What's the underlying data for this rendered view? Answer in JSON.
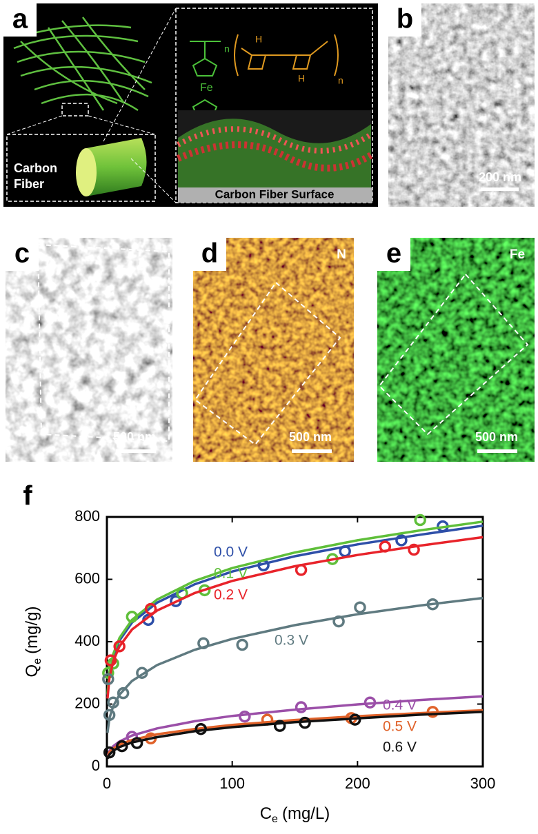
{
  "panels": {
    "a": {
      "letter": "a",
      "fiber_label": [
        "Carbon",
        "Fiber"
      ],
      "surface_label": "Carbon Fiber Surface",
      "chem_labels": [
        "n",
        "Fe",
        "H",
        "H",
        "n"
      ]
    },
    "b": {
      "letter": "b",
      "scale": "200 nm"
    },
    "c": {
      "letter": "c",
      "scale": "500 nm"
    },
    "d": {
      "letter": "d",
      "channel": "N",
      "scale": "500 nm"
    },
    "e": {
      "letter": "e",
      "channel": "Fe",
      "scale": "500 nm"
    },
    "f": {
      "letter": "f"
    }
  },
  "chart_data": {
    "type": "scatter",
    "x_label": {
      "main": "C",
      "sub": "e",
      "unit": "(mg/L)"
    },
    "y_label": {
      "main": "Q",
      "sub": "e",
      "unit": "(mg/g)"
    },
    "xlim": [
      0,
      300
    ],
    "ylim": [
      0,
      800
    ],
    "xticks": [
      0,
      100,
      200,
      300
    ],
    "yticks": [
      0,
      200,
      400,
      600,
      800
    ],
    "fit_x": [
      0.5,
      2,
      5,
      10,
      20,
      40,
      70,
      100,
      150,
      200,
      250,
      300
    ],
    "series": [
      {
        "name": "0.0 V",
        "color": "#2e4fa8",
        "x": [
          5,
          33,
          55,
          125,
          190,
          235,
          268
        ],
        "values": [
          330,
          470,
          530,
          645,
          690,
          725,
          770
        ],
        "fit_values": [
          229,
          297,
          354,
          404,
          461,
          525,
          584,
          625,
          674,
          712,
          743,
          772
        ]
      },
      {
        "name": "0.1 V",
        "color": "#5fbf3a",
        "x": [
          1,
          5,
          20,
          60,
          78,
          180,
          250
        ],
        "values": [
          300,
          330,
          480,
          555,
          565,
          665,
          790
        ],
        "fit_values": [
          233,
          302,
          360,
          412,
          470,
          535,
          595,
          636,
          686,
          725,
          757,
          785
        ]
      },
      {
        "name": "0.2 V",
        "color": "#e8232a",
        "x": [
          3,
          10,
          35,
          155,
          222,
          245
        ],
        "values": [
          340,
          385,
          505,
          630,
          705,
          695
        ],
        "fit_values": [
          218,
          283,
          337,
          385,
          439,
          500,
          556,
          595,
          642,
          678,
          708,
          735
        ]
      },
      {
        "name": "0.3 V",
        "color": "#5f7a80",
        "x": [
          1,
          2,
          5,
          13,
          28,
          77,
          108,
          185,
          202,
          260
        ],
        "values": [
          280,
          165,
          205,
          235,
          300,
          395,
          390,
          465,
          510,
          520
        ],
        "fit_values": [
          108,
          154,
          193,
          230,
          274,
          325,
          374,
          409,
          453,
          488,
          516,
          540
        ]
      },
      {
        "name": "0.4 V",
        "color": "#9b4fa8",
        "x": [
          20,
          110,
          155,
          210
        ],
        "values": [
          95,
          160,
          190,
          205
        ],
        "fit_values": [
          32,
          49,
          65,
          80,
          99,
          122,
          145,
          162,
          182,
          199,
          213,
          225
        ]
      },
      {
        "name": "0.5 V",
        "color": "#e0622a",
        "x": [
          35,
          128,
          195,
          260
        ],
        "values": [
          90,
          150,
          155,
          175
        ],
        "fit_values": [
          30,
          45,
          57,
          70,
          85,
          103,
          120,
          133,
          149,
          161,
          171,
          180
        ]
      },
      {
        "name": "0.6 V",
        "color": "#111111",
        "x": [
          2,
          12,
          24,
          75,
          138,
          158,
          198
        ],
        "values": [
          45,
          65,
          75,
          120,
          130,
          140,
          150
        ],
        "fit_values": [
          25,
          38,
          50,
          62,
          77,
          94,
          113,
          126,
          142,
          154,
          166,
          175
        ]
      }
    ]
  }
}
